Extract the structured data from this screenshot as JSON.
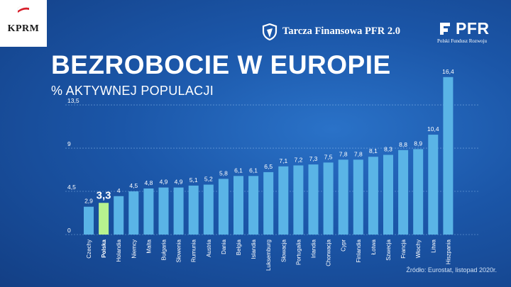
{
  "header": {
    "kprm_logo_text": "KPRM",
    "tarcza_text": "Tarcza Finansowa PFR 2.0",
    "pfr_name": "PFR",
    "pfr_subtitle": "Polski Fundusz Rozwoju"
  },
  "title": "BEZROBOCIE W EUROPIE",
  "subtitle": "% AKTYWNEJ POPULACJI",
  "source": "Źródło: Eurostat, listopad 2020r.",
  "colors": {
    "bar": "#5ab4e6",
    "highlight_bar": "#b7f28f",
    "background": "#1b56a8",
    "text": "#ffffff"
  },
  "chart_data": {
    "type": "bar",
    "title": "BEZROBOCIE W EUROPIE",
    "ylabel": "% AKTYWNEJ POPULACJI",
    "xlabel": "",
    "ylim": [
      0,
      13.5
    ],
    "yticks": [
      0,
      4.5,
      9,
      13.5
    ],
    "ytick_labels": [
      "0",
      "4,5",
      "9",
      "13,5"
    ],
    "grid": true,
    "highlight": "Polska",
    "categories": [
      "Czechy",
      "Polska",
      "Holandia",
      "Niemcy",
      "Malta",
      "Bułgaria",
      "Słowenia",
      "Rumunia",
      "Austria",
      "Dania",
      "Belgia",
      "Islandia",
      "Luksemburg",
      "Słowacja",
      "Portugalia",
      "Irlandia",
      "Chorwacja",
      "Cypr",
      "Finlandia",
      "Łotwa",
      "Szwecja",
      "Francja",
      "Włochy",
      "Litwa",
      "Hiszpania"
    ],
    "values": [
      2.9,
      3.3,
      4,
      4.5,
      4.8,
      4.9,
      4.9,
      5.1,
      5.2,
      5.8,
      6.1,
      6.1,
      6.5,
      7.1,
      7.2,
      7.3,
      7.5,
      7.8,
      7.8,
      8.1,
      8.3,
      8.8,
      8.9,
      10.4,
      16.4
    ],
    "value_labels": [
      "2,9",
      "3,3",
      "4",
      "4,5",
      "4,8",
      "4,9",
      "4,9",
      "5,1",
      "5,2",
      "5,8",
      "6,1",
      "6,1",
      "6,5",
      "7,1",
      "7,2",
      "7,3",
      "7,5",
      "7,8",
      "7,8",
      "8,1",
      "8,3",
      "8,8",
      "8,9",
      "10,4",
      "16,4"
    ]
  }
}
